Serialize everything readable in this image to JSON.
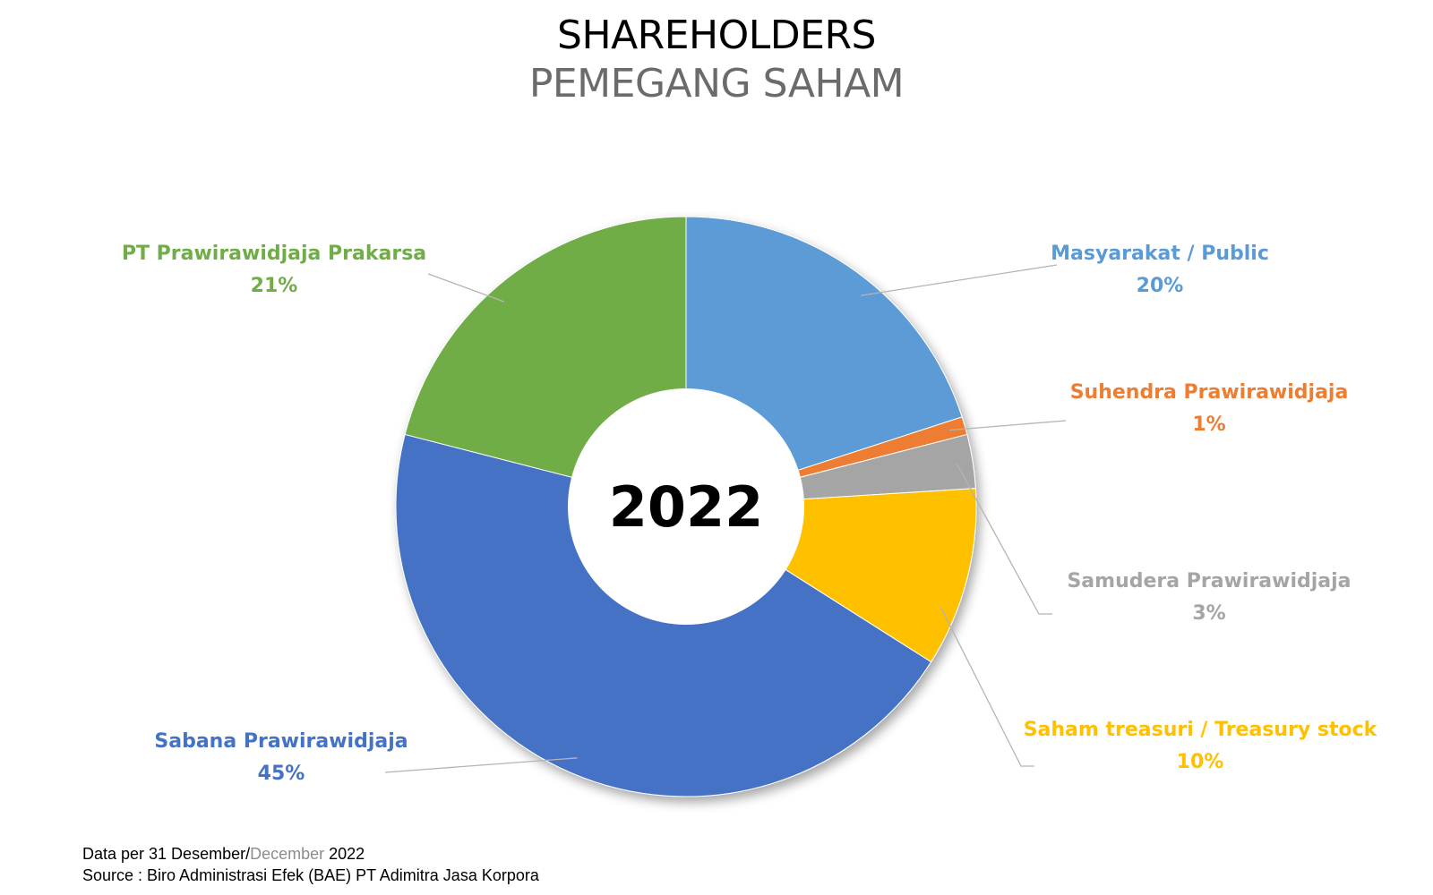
{
  "header": {
    "title": "SHAREHOLDERS",
    "subtitle": "PEMEGANG SAHAM"
  },
  "chart_data": {
    "type": "pie",
    "style": "donut",
    "center_label": "2022",
    "slices": [
      {
        "label": "Masyarakat / Public",
        "value": 20,
        "value_label": "20%",
        "color": "#5B9BD5"
      },
      {
        "label": "Suhendra Prawirawidjaja",
        "value": 1,
        "value_label": "1%",
        "color": "#ED7D31"
      },
      {
        "label": "Samudera Prawirawidjaja",
        "value": 3,
        "value_label": "3%",
        "color": "#A5A5A5"
      },
      {
        "label": "Saham treasuri / Treasury stock",
        "value": 10,
        "value_label": "10%",
        "color": "#FFC000"
      },
      {
        "label": "Sabana Prawirawidjaja",
        "value": 45,
        "value_label": "45%",
        "color": "#4472C4"
      },
      {
        "label": "PT Prawirawidjaja Prakarsa",
        "value": 21,
        "value_label": "21%",
        "color": "#70AD47"
      }
    ]
  },
  "footer": {
    "line1_prefix": "Data per 31 Desember/",
    "line1_gray": "December",
    "line1_suffix": " 2022",
    "line2": "Source : Biro Administrasi Efek (BAE) PT Adimitra Jasa Korpora"
  }
}
